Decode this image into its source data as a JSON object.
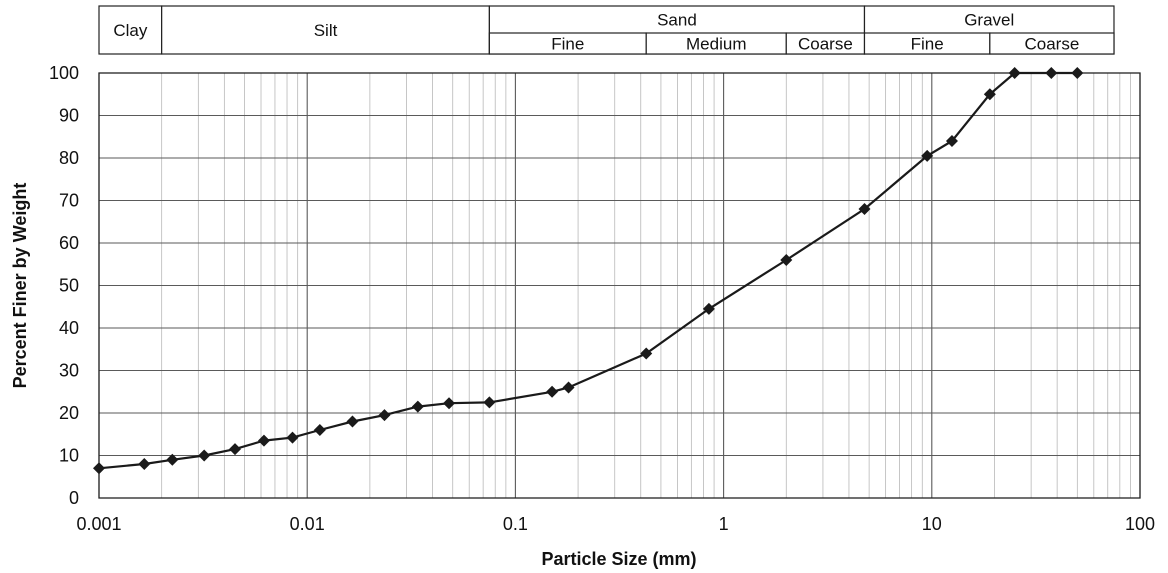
{
  "chart_data": {
    "type": "line",
    "xscale": "log",
    "xlabel": "Particle Size (mm)",
    "ylabel": "Percent Finer by Weight",
    "xlim": [
      0.001,
      100
    ],
    "ylim": [
      0,
      100
    ],
    "x_ticks": [
      "0.001",
      "0.01",
      "0.1",
      "1",
      "10",
      "100"
    ],
    "y_ticks": [
      "0",
      "10",
      "20",
      "30",
      "40",
      "50",
      "60",
      "70",
      "80",
      "90",
      "100"
    ],
    "grid": true,
    "series": [
      {
        "marker": "diamond",
        "color": "#1a1a1a",
        "x": [
          0.001,
          0.00165,
          0.00225,
          0.0032,
          0.0045,
          0.0062,
          0.0085,
          0.0115,
          0.0165,
          0.0235,
          0.034,
          0.048,
          0.075,
          0.15,
          0.18,
          0.425,
          0.85,
          2.0,
          4.75,
          9.5,
          12.5,
          19.0,
          25.0,
          37.5,
          50.0
        ],
        "values": [
          7,
          8,
          9,
          10,
          11.5,
          13.5,
          14.2,
          16,
          18,
          19.5,
          21.5,
          22.3,
          22.5,
          25,
          26,
          34,
          44.5,
          56,
          68,
          80.5,
          84,
          95,
          100,
          100,
          100
        ]
      }
    ],
    "classification": {
      "groups": [
        {
          "label": "Clay",
          "from": 0.001,
          "to": 0.002
        },
        {
          "label": "Silt",
          "from": 0.002,
          "to": 0.075
        },
        {
          "label": "Sand",
          "from": 0.075,
          "to": 4.75
        },
        {
          "label": "Gravel",
          "from": 4.75,
          "to": 75
        }
      ],
      "subdivisions": [
        {
          "label": "Fine",
          "from": 0.075,
          "to": 0.425
        },
        {
          "label": "Medium",
          "from": 0.425,
          "to": 2.0
        },
        {
          "label": "Coarse",
          "from": 2.0,
          "to": 4.75
        },
        {
          "label": "Fine",
          "from": 4.75,
          "to": 19.0
        },
        {
          "label": "Coarse",
          "from": 19.0,
          "to": 75
        }
      ]
    }
  }
}
